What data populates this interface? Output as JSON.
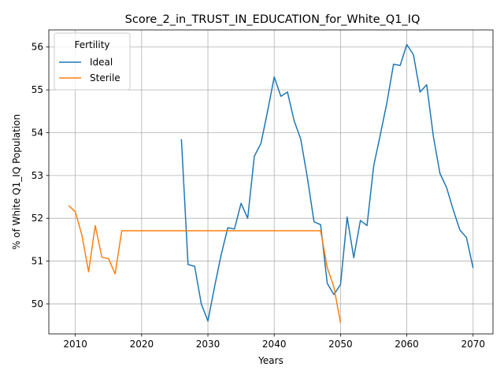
{
  "chart_data": {
    "type": "line",
    "title": "Score_2_in_TRUST_IN_EDUCATION_for_White_Q1_IQ",
    "xlabel": "Years",
    "ylabel": "% of White Q1_IQ Population",
    "xlim": [
      2006,
      2073
    ],
    "ylim": [
      49.3,
      56.4
    ],
    "xticks": [
      2010,
      2020,
      2030,
      2040,
      2050,
      2060,
      2070
    ],
    "yticks": [
      50,
      51,
      52,
      53,
      54,
      55,
      56
    ],
    "grid": true,
    "legend": {
      "title": "Fertility",
      "position": "top-left"
    },
    "series": [
      {
        "name": "Ideal",
        "color": "#1f77b4",
        "x": [
          2026,
          2027,
          2028,
          2029,
          2030,
          2031,
          2032,
          2033,
          2034,
          2035,
          2036,
          2037,
          2038,
          2039,
          2040,
          2041,
          2042,
          2043,
          2044,
          2045,
          2046,
          2047,
          2048,
          2049,
          2050,
          2051,
          2052,
          2053,
          2054,
          2055,
          2056,
          2057,
          2058,
          2059,
          2060,
          2061,
          2062,
          2063,
          2064,
          2065,
          2066,
          2067,
          2068,
          2069,
          2070
        ],
        "y": [
          53.85,
          50.92,
          50.88,
          50.0,
          49.6,
          50.4,
          51.15,
          51.78,
          51.75,
          52.35,
          52.0,
          53.45,
          53.75,
          54.5,
          55.3,
          54.85,
          54.95,
          54.28,
          53.85,
          52.95,
          51.92,
          51.85,
          50.48,
          50.22,
          50.45,
          52.03,
          51.08,
          51.95,
          51.83,
          53.22,
          53.95,
          54.7,
          55.6,
          55.57,
          56.06,
          55.82,
          54.95,
          55.12,
          53.92,
          53.05,
          52.72,
          52.2,
          51.73,
          51.55,
          50.84
        ]
      },
      {
        "name": "Sterile",
        "color": "#ff7f0e",
        "x": [
          2009,
          2010,
          2011,
          2012,
          2013,
          2014,
          2015,
          2016,
          2017,
          2018,
          2019,
          2020,
          2021,
          2022,
          2023,
          2024,
          2025,
          2026,
          2027,
          2028,
          2029,
          2030,
          2031,
          2032,
          2033,
          2034,
          2035,
          2036,
          2037,
          2038,
          2039,
          2040,
          2041,
          2042,
          2043,
          2044,
          2045,
          2046,
          2047,
          2048,
          2049,
          2050
        ],
        "y": [
          52.3,
          52.15,
          51.6,
          50.75,
          51.83,
          51.09,
          51.06,
          50.7,
          51.71,
          51.71,
          51.71,
          51.71,
          51.71,
          51.71,
          51.71,
          51.71,
          51.71,
          51.71,
          51.71,
          51.71,
          51.71,
          51.71,
          51.71,
          51.71,
          51.71,
          51.71,
          51.71,
          51.71,
          51.71,
          51.71,
          51.71,
          51.71,
          51.71,
          51.71,
          51.71,
          51.71,
          51.71,
          51.71,
          51.71,
          50.85,
          50.4,
          49.56
        ]
      }
    ]
  }
}
